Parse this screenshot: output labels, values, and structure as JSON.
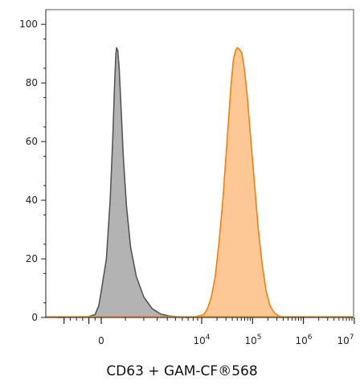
{
  "chart_data": {
    "type": "area",
    "xlabel": "CD63 + GAM-CF®568",
    "ylabel": "",
    "x_scale": "biexponential",
    "ylim": [
      0,
      105
    ],
    "y_ticks": [
      0,
      20,
      40,
      60,
      80,
      100
    ],
    "x_tick_labels": [
      {
        "base": "0",
        "exp": ""
      },
      {
        "base": "10",
        "exp": "4"
      },
      {
        "base": "10",
        "exp": "5"
      },
      {
        "base": "10",
        "exp": "6"
      },
      {
        "base": "10",
        "exp": "7"
      }
    ],
    "grid": false,
    "legend": "none",
    "series": [
      {
        "color": "#b3b3b3",
        "stroke": "#555555",
        "points": [
          [
            -3500,
            0
          ],
          [
            -1000,
            0.3
          ],
          [
            -500,
            1
          ],
          [
            -200,
            4
          ],
          [
            0,
            9
          ],
          [
            200,
            20
          ],
          [
            350,
            40
          ],
          [
            450,
            60
          ],
          [
            530,
            80
          ],
          [
            580,
            90
          ],
          [
            610,
            92
          ],
          [
            660,
            91
          ],
          [
            720,
            85
          ],
          [
            800,
            72
          ],
          [
            900,
            55
          ],
          [
            1050,
            38
          ],
          [
            1250,
            24
          ],
          [
            1550,
            14
          ],
          [
            2000,
            7
          ],
          [
            2600,
            3
          ],
          [
            3300,
            1.2
          ],
          [
            4200,
            0.5
          ],
          [
            5500,
            0.2
          ],
          [
            7000,
            0
          ]
        ]
      },
      {
        "color": "#fdc896",
        "stroke": "#f0800e",
        "points": [
          [
            7000,
            0
          ],
          [
            9000,
            0.4
          ],
          [
            11000,
            1
          ],
          [
            13000,
            3
          ],
          [
            15500,
            7
          ],
          [
            18500,
            14
          ],
          [
            22000,
            26
          ],
          [
            26000,
            40
          ],
          [
            30000,
            55
          ],
          [
            34000,
            68
          ],
          [
            38000,
            80
          ],
          [
            42000,
            88
          ],
          [
            46000,
            91
          ],
          [
            50000,
            92
          ],
          [
            55000,
            91.5
          ],
          [
            62000,
            90
          ],
          [
            70000,
            84
          ],
          [
            80000,
            74
          ],
          [
            93000,
            60
          ],
          [
            110000,
            45
          ],
          [
            130000,
            30
          ],
          [
            155000,
            18
          ],
          [
            185000,
            9
          ],
          [
            220000,
            4
          ],
          [
            270000,
            1.5
          ],
          [
            330000,
            0.5
          ],
          [
            420000,
            0
          ]
        ]
      }
    ]
  }
}
